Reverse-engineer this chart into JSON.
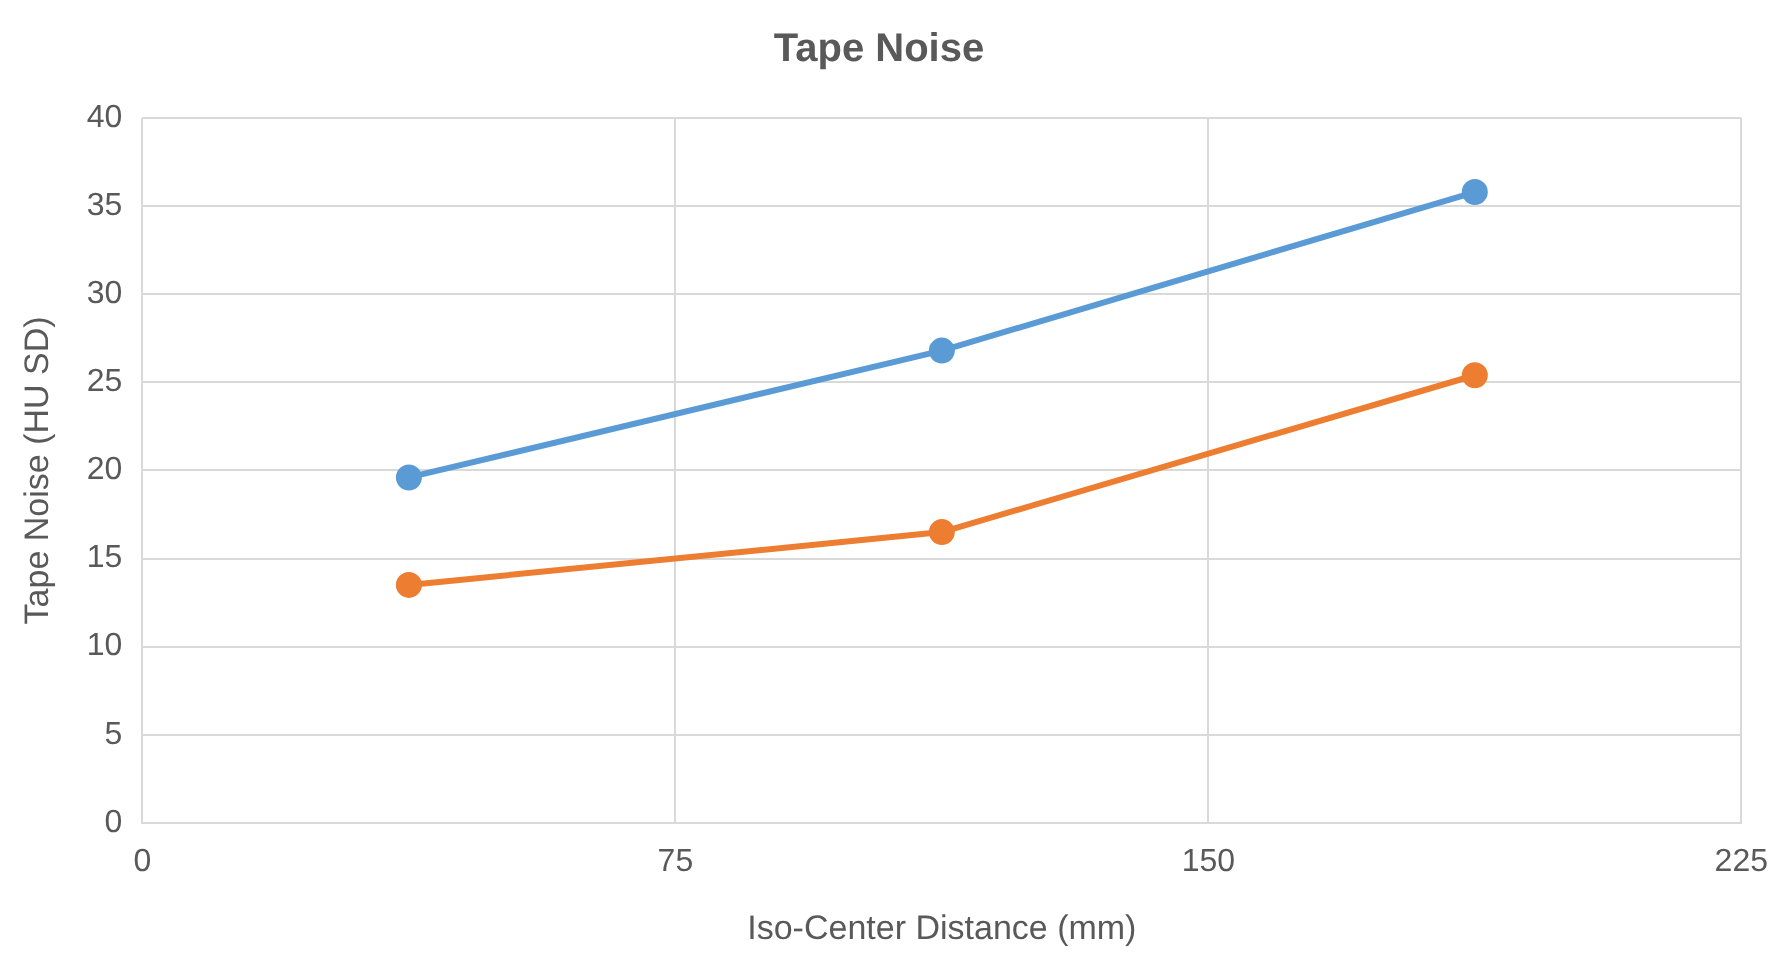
{
  "chart_data": {
    "type": "line",
    "title": "Tape Noise",
    "xlabel": "Iso-Center Distance (mm)",
    "ylabel": "Tape Noise (HU SD)",
    "x": [
      37.5,
      112.5,
      187.5
    ],
    "series": [
      {
        "color": "#5b9bd5",
        "values": [
          19.6,
          26.8,
          35.8
        ]
      },
      {
        "color": "#ed7d31",
        "values": [
          13.5,
          16.5,
          25.4
        ]
      }
    ],
    "xlim": [
      0,
      225
    ],
    "xticks": [
      0,
      75,
      150,
      225
    ],
    "ylim": [
      0,
      40
    ],
    "yticks": [
      0,
      5,
      10,
      15,
      20,
      25,
      30,
      35,
      40
    ],
    "grid": true,
    "legend": false,
    "marker": "circle",
    "line_style": "solid"
  }
}
